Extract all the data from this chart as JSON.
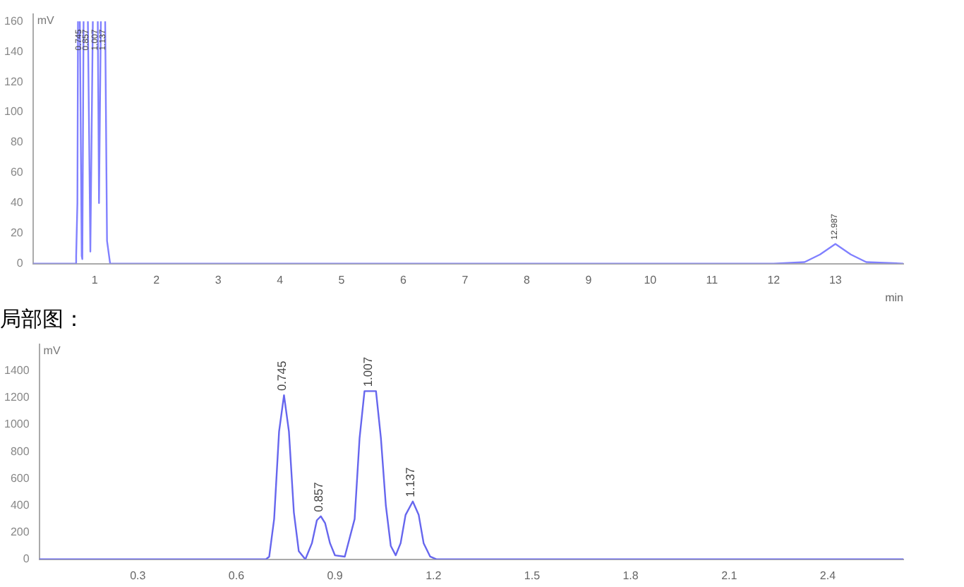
{
  "chart_data": [
    {
      "type": "line",
      "ylabel": "mV",
      "xlabel": "min",
      "x": [
        0,
        0.6,
        0.68,
        0.7,
        0.72,
        0.73,
        0.745,
        0.76,
        0.79,
        0.8,
        0.82,
        0.857,
        0.89,
        0.93,
        0.97,
        1.007,
        1.05,
        1.07,
        1.1,
        1.137,
        1.17,
        1.2,
        1.25,
        12,
        12.5,
        12.75,
        13,
        13.25,
        13.5,
        14.1
      ],
      "series": [
        {
          "color": "#8080ff",
          "values": [
            0,
            0,
            0,
            5,
            40,
            160,
            null,
            160,
            5,
            3,
            160,
            null,
            160,
            8,
            160,
            null,
            160,
            40,
            160,
            null,
            160,
            15,
            0,
            0,
            1,
            6,
            13,
            6,
            1,
            0
          ]
        }
      ],
      "xlim": [
        0,
        14.1
      ],
      "xticks": [
        1,
        2,
        3,
        4,
        5,
        6,
        7,
        8,
        9,
        10,
        11,
        12,
        13
      ],
      "ylim": [
        0,
        165
      ],
      "yticks": [
        0,
        20,
        40,
        60,
        80,
        100,
        120,
        140,
        160
      ],
      "annotations": [
        {
          "text": "0.745",
          "x": 0.745,
          "y": 160
        },
        {
          "text": "0.857",
          "x": 0.857,
          "y": 160
        },
        {
          "text": "1.007",
          "x": 1.007,
          "y": 160
        },
        {
          "text": "1.137",
          "x": 1.137,
          "y": 160
        },
        {
          "text": "12.987",
          "x": 12.987,
          "y": 13
        }
      ],
      "grid": false,
      "legend": false,
      "marker": "none",
      "line_style": "solid"
    },
    {
      "type": "line",
      "title": "局部图：",
      "ylabel": "mV",
      "x": [
        0,
        0.69,
        0.7,
        0.715,
        0.73,
        0.745,
        0.76,
        0.775,
        0.79,
        0.81,
        0.83,
        0.845,
        0.857,
        0.87,
        0.885,
        0.9,
        0.93,
        0.96,
        0.975,
        0.99,
        1.007,
        1.025,
        1.04,
        1.055,
        1.07,
        1.085,
        1.1,
        1.115,
        1.137,
        1.155,
        1.17,
        1.19,
        1.21,
        2.63
      ],
      "series": [
        {
          "color": "#6666ee",
          "values": [
            0,
            0,
            20,
            300,
            950,
            1220,
            950,
            350,
            60,
            0,
            120,
            290,
            320,
            270,
            120,
            30,
            20,
            300,
            900,
            1250,
            1250,
            1250,
            900,
            400,
            100,
            30,
            120,
            330,
            430,
            330,
            120,
            20,
            0,
            0
          ]
        }
      ],
      "xlim": [
        0,
        2.63
      ],
      "xticks": [
        0.3,
        0.6,
        0.9,
        1.2,
        1.5,
        1.8,
        2.1,
        2.4
      ],
      "ylim": [
        0,
        1600
      ],
      "yticks": [
        0,
        200,
        400,
        600,
        800,
        1000,
        1200,
        1400
      ],
      "annotations": [
        {
          "text": "0.745",
          "x": 0.745,
          "y": 1220
        },
        {
          "text": "0.857",
          "x": 0.857,
          "y": 320
        },
        {
          "text": "1.007",
          "x": 1.007,
          "y": 1250
        },
        {
          "text": "1.137",
          "x": 1.137,
          "y": 430
        }
      ],
      "grid": false,
      "legend": false,
      "marker": "none",
      "line_style": "solid"
    }
  ]
}
